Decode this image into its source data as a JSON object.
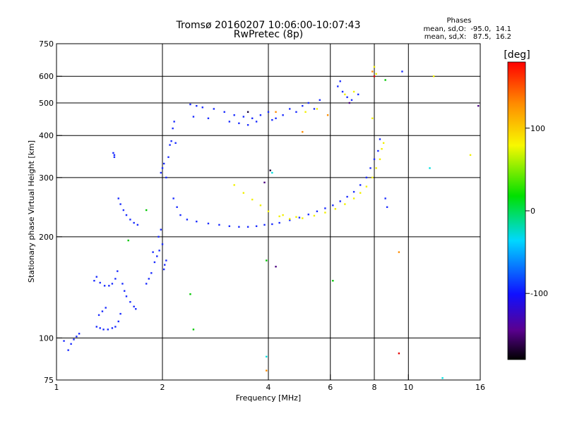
{
  "chart_data": {
    "type": "scatter",
    "title": "Tromsø 20160207 10:06:00-10:07:43",
    "subtitle": "RwPretec (8p)",
    "xlabel": "Frequency [MHz]",
    "ylabel": "Stationary phase Virtual Height [km]",
    "x_scale": "log",
    "y_scale": "log",
    "xlim": [
      1,
      16
    ],
    "ylim": [
      75,
      750
    ],
    "x_ticks": [
      1,
      2,
      4,
      6,
      8,
      10,
      16
    ],
    "y_ticks": [
      75,
      100,
      200,
      300,
      400,
      500,
      600,
      750
    ],
    "grid_x": [
      2,
      4,
      6,
      8,
      10
    ],
    "grid_y": [
      100,
      200,
      300,
      400,
      500,
      600
    ],
    "stats": {
      "heading": "Phases",
      "line1": "mean, sd,O:  -95.0,  14.1",
      "line2": "mean, sd,X:   87.5,  16.2"
    },
    "colorbar": {
      "label": "[deg]",
      "range": [
        -180,
        180
      ],
      "ticks": [
        100,
        0,
        -100
      ],
      "tick_labels": [
        "100",
        "0",
        "-100"
      ]
    },
    "series": [
      {
        "phase": -95,
        "color": "#1a2cff",
        "points": [
          [
            1.45,
            355
          ],
          [
            1.46,
            350
          ],
          [
            1.46,
            345
          ],
          [
            1.5,
            260
          ],
          [
            1.52,
            250
          ],
          [
            1.55,
            240
          ],
          [
            1.58,
            232
          ],
          [
            1.62,
            225
          ],
          [
            1.66,
            220
          ],
          [
            1.7,
            217
          ],
          [
            1.05,
            98
          ],
          [
            1.08,
            92
          ],
          [
            1.1,
            96
          ],
          [
            1.12,
            99
          ],
          [
            1.14,
            101
          ],
          [
            1.16,
            103
          ],
          [
            1.3,
            108
          ],
          [
            1.33,
            107
          ],
          [
            1.36,
            106
          ],
          [
            1.4,
            106
          ],
          [
            1.44,
            107
          ],
          [
            1.47,
            108
          ],
          [
            1.5,
            112
          ],
          [
            1.52,
            118
          ],
          [
            1.28,
            148
          ],
          [
            1.3,
            152
          ],
          [
            1.33,
            146
          ],
          [
            1.37,
            143
          ],
          [
            1.41,
            143
          ],
          [
            1.44,
            145
          ],
          [
            1.47,
            150
          ],
          [
            1.49,
            158
          ],
          [
            1.32,
            117
          ],
          [
            1.35,
            120
          ],
          [
            1.38,
            123
          ],
          [
            1.54,
            145
          ],
          [
            1.56,
            138
          ],
          [
            1.58,
            133
          ],
          [
            1.62,
            128
          ],
          [
            1.66,
            124
          ],
          [
            1.68,
            122
          ],
          [
            1.8,
            145
          ],
          [
            1.83,
            150
          ],
          [
            1.86,
            156
          ],
          [
            1.9,
            168
          ],
          [
            1.93,
            175
          ],
          [
            1.96,
            182
          ],
          [
            2.0,
            190
          ],
          [
            2.02,
            160
          ],
          [
            2.05,
            170
          ],
          [
            1.88,
            180
          ],
          [
            1.95,
            200
          ],
          [
            1.98,
            210
          ],
          [
            2.03,
            165
          ],
          [
            1.98,
            310
          ],
          [
            2.0,
            320
          ],
          [
            2.02,
            330
          ],
          [
            2.05,
            300
          ],
          [
            2.08,
            345
          ],
          [
            2.1,
            375
          ],
          [
            2.12,
            385
          ],
          [
            2.14,
            420
          ],
          [
            2.16,
            440
          ],
          [
            2.18,
            380
          ],
          [
            2.15,
            260
          ],
          [
            2.2,
            245
          ],
          [
            2.25,
            232
          ],
          [
            2.35,
            225
          ],
          [
            2.5,
            222
          ],
          [
            2.7,
            219
          ],
          [
            2.9,
            217
          ],
          [
            3.1,
            215
          ],
          [
            3.3,
            214
          ],
          [
            3.5,
            214
          ],
          [
            3.7,
            215
          ],
          [
            3.9,
            217
          ],
          [
            4.1,
            218
          ],
          [
            4.3,
            220
          ],
          [
            4.6,
            224
          ],
          [
            4.9,
            228
          ],
          [
            5.2,
            233
          ],
          [
            5.5,
            238
          ],
          [
            5.8,
            243
          ],
          [
            6.1,
            248
          ],
          [
            6.4,
            255
          ],
          [
            6.7,
            263
          ],
          [
            7.0,
            272
          ],
          [
            7.3,
            285
          ],
          [
            7.6,
            300
          ],
          [
            7.8,
            320
          ],
          [
            8.0,
            340
          ],
          [
            8.2,
            360
          ],
          [
            8.3,
            390
          ],
          [
            2.4,
            495
          ],
          [
            2.5,
            490
          ],
          [
            2.6,
            485
          ],
          [
            2.8,
            480
          ],
          [
            3.0,
            470
          ],
          [
            3.2,
            460
          ],
          [
            3.4,
            455
          ],
          [
            3.6,
            450
          ],
          [
            3.8,
            460
          ],
          [
            4.0,
            470
          ],
          [
            4.2,
            450
          ],
          [
            4.4,
            460
          ],
          [
            4.6,
            480
          ],
          [
            4.8,
            470
          ],
          [
            5.0,
            490
          ],
          [
            5.2,
            500
          ],
          [
            5.4,
            480
          ],
          [
            5.6,
            510
          ],
          [
            2.45,
            455
          ],
          [
            2.7,
            450
          ],
          [
            3.1,
            440
          ],
          [
            3.3,
            435
          ],
          [
            3.5,
            430
          ],
          [
            3.7,
            440
          ],
          [
            4.1,
            445
          ],
          [
            6.3,
            560
          ],
          [
            6.4,
            580
          ],
          [
            6.5,
            540
          ],
          [
            6.7,
            520
          ],
          [
            6.9,
            510
          ],
          [
            7.2,
            530
          ],
          [
            9.6,
            620
          ],
          [
            8.6,
            260
          ],
          [
            8.7,
            245
          ]
        ]
      },
      {
        "phase": 88,
        "color": "#f2f000",
        "points": [
          [
            3.2,
            285
          ],
          [
            3.4,
            270
          ],
          [
            3.6,
            258
          ],
          [
            3.8,
            248
          ],
          [
            4.0,
            238
          ],
          [
            4.3,
            230
          ],
          [
            4.6,
            226
          ],
          [
            5.0,
            227
          ],
          [
            5.4,
            231
          ],
          [
            5.8,
            236
          ],
          [
            6.2,
            242
          ],
          [
            6.6,
            250
          ],
          [
            7.0,
            260
          ],
          [
            7.3,
            270
          ],
          [
            7.6,
            282
          ],
          [
            7.9,
            300
          ],
          [
            8.1,
            320
          ],
          [
            8.3,
            340
          ],
          [
            8.4,
            365
          ],
          [
            8.5,
            380
          ],
          [
            7.9,
            450
          ],
          [
            8.0,
            640
          ],
          [
            8.1,
            610
          ],
          [
            6.6,
            530
          ],
          [
            7.0,
            540
          ],
          [
            5.5,
            480
          ],
          [
            11.8,
            600
          ],
          [
            15.0,
            350
          ],
          [
            5.1,
            470
          ],
          [
            4.4,
            232
          ],
          [
            4.8,
            229
          ]
        ]
      },
      {
        "phase": 150,
        "color": "#ff8c00",
        "points": [
          [
            3.95,
            80
          ],
          [
            5.0,
            410
          ],
          [
            9.4,
            180
          ],
          [
            7.9,
            620
          ],
          [
            5.9,
            460
          ],
          [
            4.2,
            470
          ]
        ]
      },
      {
        "phase": 175,
        "color": "#e60000",
        "points": [
          [
            9.4,
            90
          ],
          [
            8.0,
            600
          ]
        ]
      },
      {
        "phase": 40,
        "color": "#00c800",
        "points": [
          [
            2.4,
            135
          ],
          [
            2.45,
            106
          ],
          [
            3.95,
            170
          ],
          [
            6.1,
            148
          ],
          [
            8.6,
            585
          ],
          [
            1.6,
            195
          ],
          [
            1.8,
            240
          ]
        ]
      },
      {
        "phase": -10,
        "color": "#00e0e0",
        "points": [
          [
            3.95,
            88
          ],
          [
            4.1,
            310
          ],
          [
            11.5,
            320
          ],
          [
            12.5,
            76
          ]
        ]
      },
      {
        "phase": -150,
        "color": "#4b0082",
        "points": [
          [
            4.2,
            163
          ],
          [
            3.9,
            290
          ],
          [
            15.8,
            490
          ],
          [
            6.8,
            500
          ]
        ]
      },
      {
        "phase": -170,
        "color": "#1a0033",
        "points": [
          [
            4.05,
            315
          ],
          [
            3.5,
            470
          ]
        ]
      }
    ]
  }
}
